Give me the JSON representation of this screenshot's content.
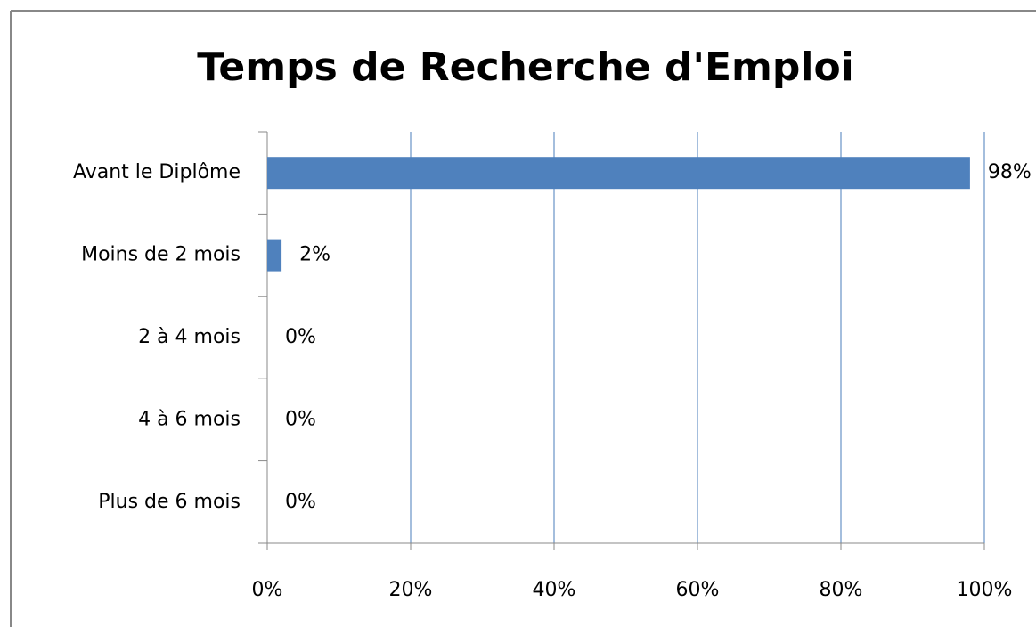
{
  "chart_data": {
    "type": "bar",
    "orientation": "horizontal",
    "title": "Temps de Recherche d'Emploi",
    "categories": [
      "Avant le Diplôme",
      "Moins de 2 mois",
      "2 à 4 mois",
      "4 à 6 mois",
      "Plus de 6 mois"
    ],
    "values": [
      98,
      2,
      0,
      0,
      0
    ],
    "value_labels": [
      "98%",
      "2%",
      "0%",
      "0%",
      "0%"
    ],
    "color": "#4f81bd",
    "xlim": [
      0,
      100
    ],
    "xticks": [
      {
        "value": 0,
        "label": "0%"
      },
      {
        "value": 20,
        "label": "20%"
      },
      {
        "value": 40,
        "label": "40%"
      },
      {
        "value": 60,
        "label": "60%"
      },
      {
        "value": 80,
        "label": "80%"
      },
      {
        "value": 100,
        "label": "100%"
      }
    ],
    "grid": true
  }
}
